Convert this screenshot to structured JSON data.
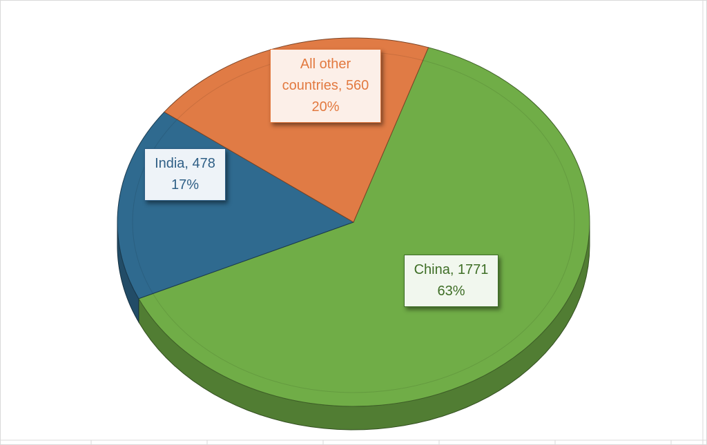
{
  "chart_data": {
    "type": "pie",
    "title": "",
    "slices": [
      {
        "label": "China",
        "value": 1771,
        "percent": "63%",
        "color": "#70AD47",
        "label_color": "#3E6E26",
        "label_bg": "#F1F7EE"
      },
      {
        "label": "India",
        "value": 478,
        "percent": "17%",
        "color": "#2F6A8F",
        "label_color": "#2F5F86",
        "label_bg": "#EEF3F8"
      },
      {
        "label": "All other countries",
        "value": 560,
        "percent": "20%",
        "color": "#E07B45",
        "label_color": "#E2793F",
        "label_bg": "#FCEFE8"
      }
    ],
    "style": "3d-pie",
    "legend": "none",
    "data_labels": "category-value-percent"
  },
  "labels": {
    "china": {
      "line1": "China, 1771",
      "line2": "63%"
    },
    "india": {
      "line1": "India, 478",
      "line2": "17%"
    },
    "other": {
      "line1": "All other",
      "line2": "countries, 560",
      "line3": "20%"
    }
  }
}
